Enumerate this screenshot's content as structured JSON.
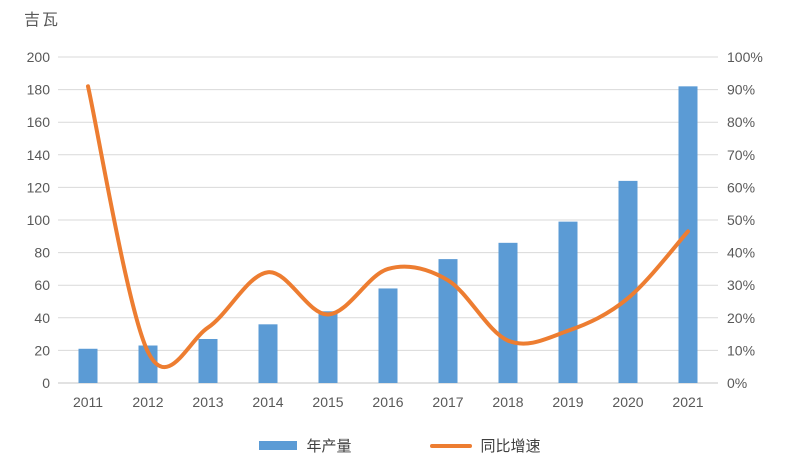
{
  "chart_data": {
    "type": "combo",
    "title": "",
    "left_axis_title": "吉瓦",
    "categories": [
      "2011",
      "2012",
      "2013",
      "2014",
      "2015",
      "2016",
      "2017",
      "2018",
      "2019",
      "2020",
      "2021"
    ],
    "series": [
      {
        "name": "年产量",
        "type": "bar",
        "axis": "left",
        "color": "#5B9BD5",
        "values": [
          21,
          23,
          27,
          36,
          44,
          58,
          76,
          86,
          99,
          124,
          182
        ]
      },
      {
        "name": "同比增速",
        "type": "line",
        "axis": "right",
        "color": "#ED7D31",
        "values": [
          91,
          9.5,
          17,
          34,
          21,
          35,
          31.5,
          13,
          16,
          26,
          46.5
        ]
      }
    ],
    "left_axis": {
      "min": 0,
      "max": 200,
      "step": 20,
      "ticks": [
        "0",
        "20",
        "40",
        "60",
        "80",
        "100",
        "120",
        "140",
        "160",
        "180",
        "200"
      ]
    },
    "right_axis": {
      "min": 0,
      "max": 100,
      "step": 10,
      "ticks": [
        "0%",
        "10%",
        "20%",
        "30%",
        "40%",
        "50%",
        "60%",
        "70%",
        "80%",
        "90%",
        "100%"
      ]
    },
    "grid": true,
    "legend_position": "bottom",
    "colors": {
      "grid": "#D9D9D9",
      "axis_line": "#C6C6C6",
      "axis_text": "#595959",
      "legend_text": "#404040",
      "background": "#FFFFFF"
    }
  }
}
